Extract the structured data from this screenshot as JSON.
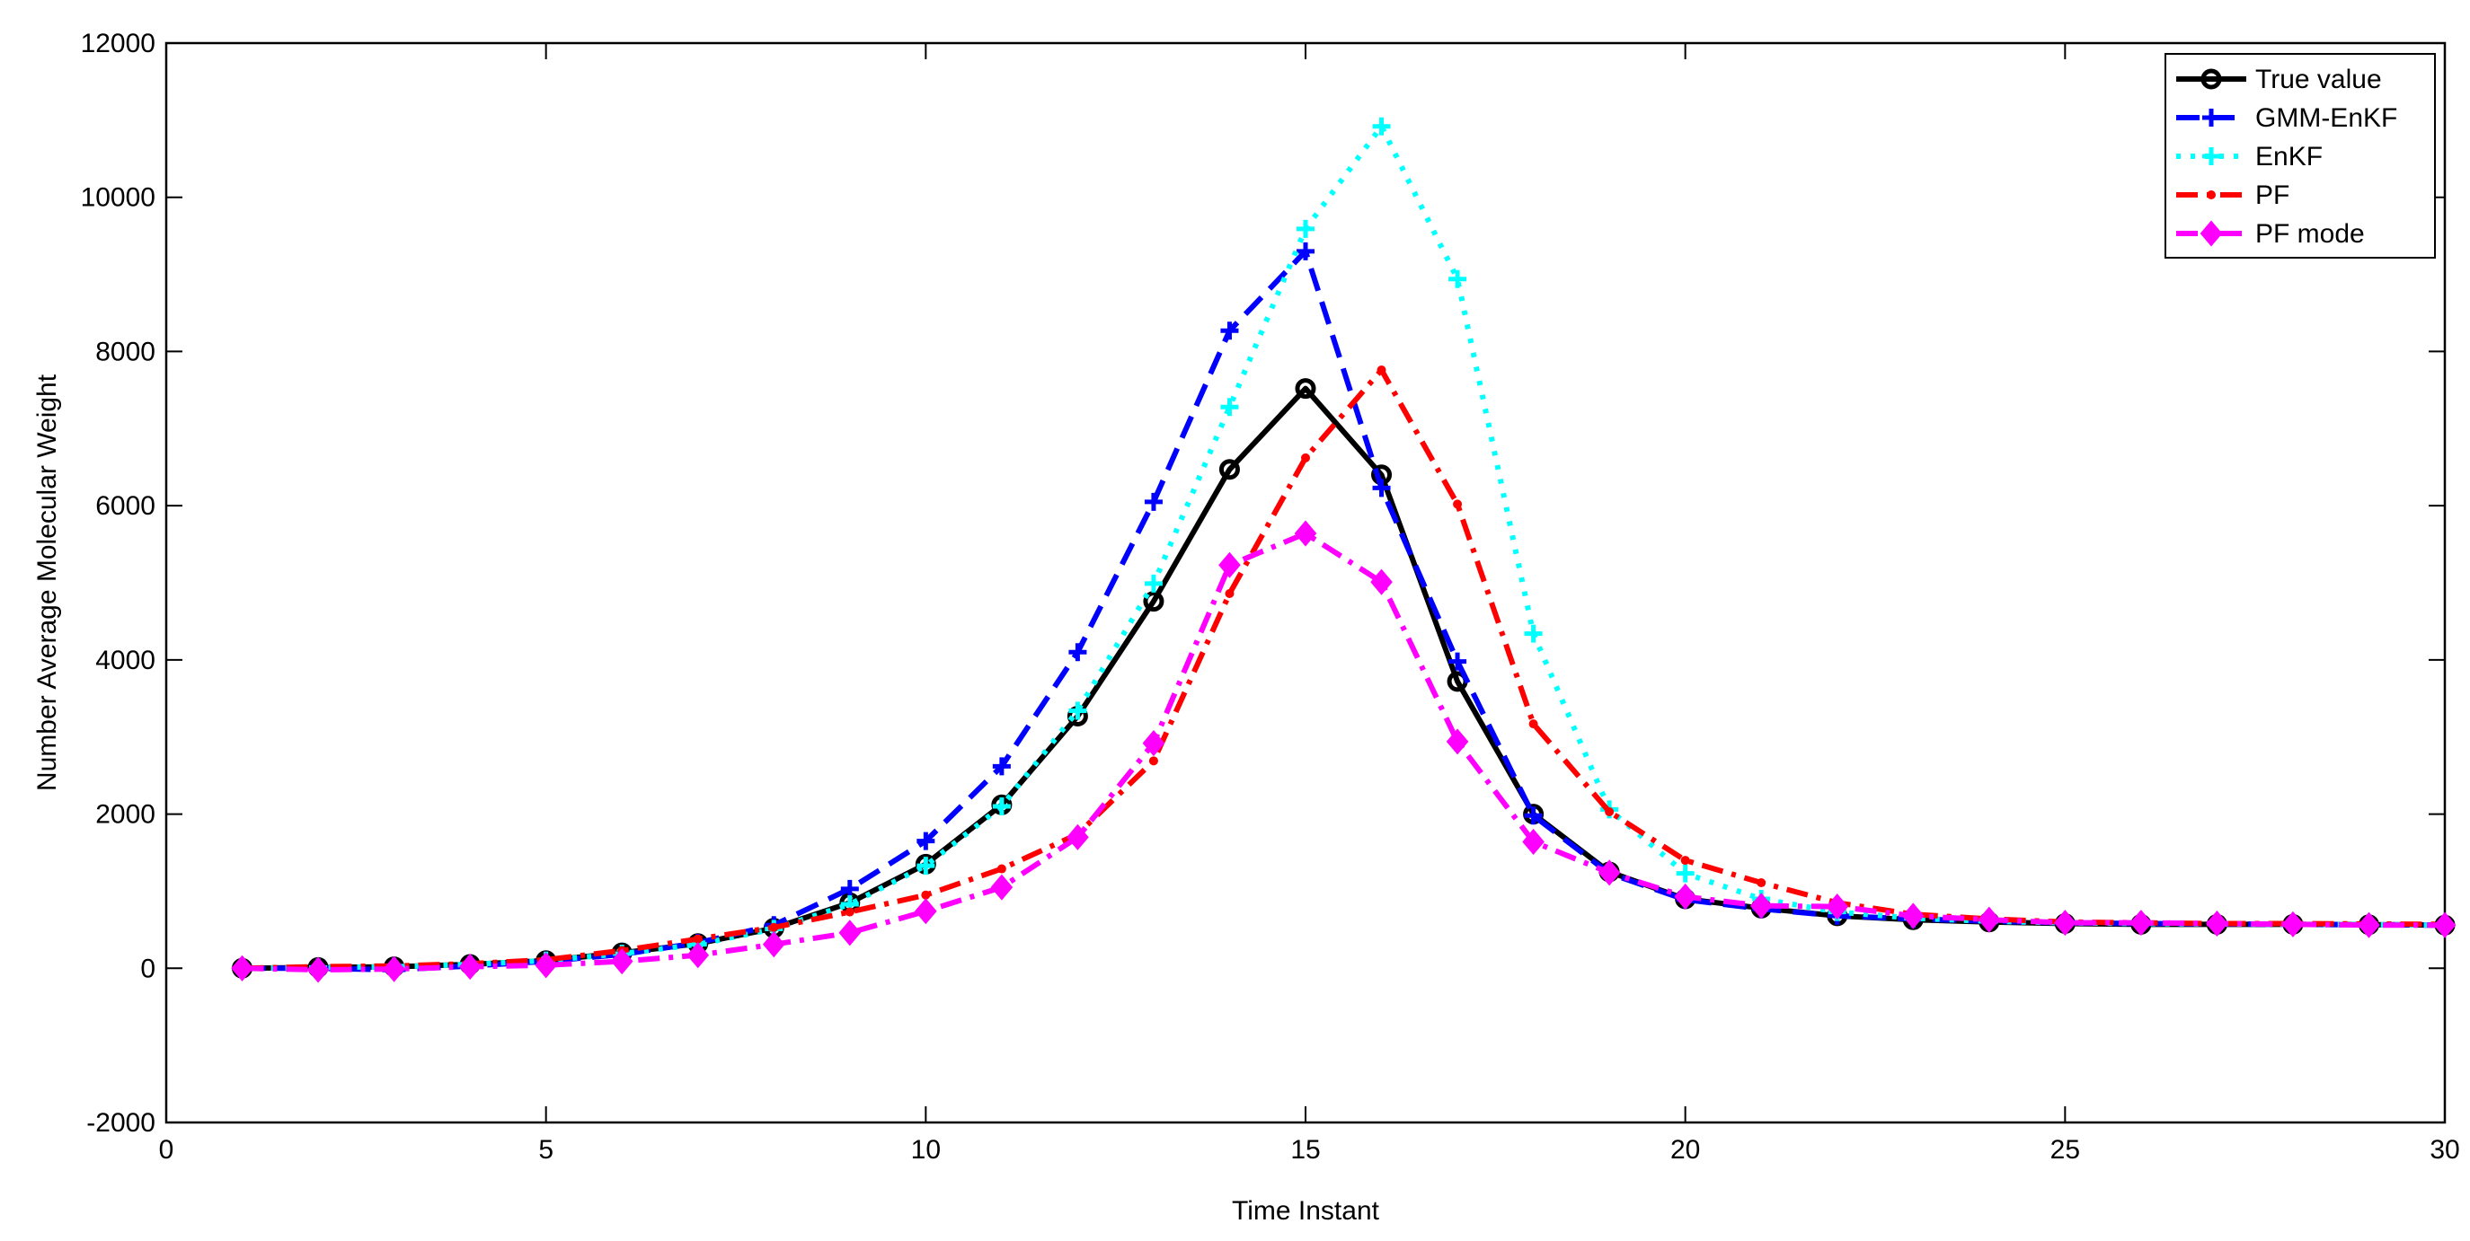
{
  "chart_data": {
    "type": "line",
    "title": "",
    "xlabel": "Time Instant",
    "ylabel": "Number Average Molecular Weight",
    "xlim": [
      0,
      30
    ],
    "ylim": [
      -2000,
      12000
    ],
    "xticks": [
      0,
      5,
      10,
      15,
      20,
      25,
      30
    ],
    "yticks": [
      -2000,
      0,
      2000,
      4000,
      6000,
      8000,
      10000,
      12000
    ],
    "grid": false,
    "legend_position": "top-right",
    "x": [
      1,
      2,
      3,
      4,
      5,
      6,
      7,
      8,
      9,
      10,
      11,
      12,
      13,
      14,
      15,
      16,
      17,
      18,
      19,
      20,
      21,
      22,
      23,
      24,
      25,
      26,
      27,
      28,
      29,
      30
    ],
    "series": [
      {
        "name": "True value",
        "color": "#000000",
        "dash": "solid",
        "marker": "circle",
        "values": [
          0,
          10,
          20,
          50,
          100,
          200,
          320,
          520,
          850,
          1350,
          2120,
          3270,
          4760,
          6470,
          7520,
          6400,
          3720,
          2000,
          1250,
          900,
          780,
          680,
          630,
          600,
          580,
          570,
          570,
          570,
          565,
          560
        ]
      },
      {
        "name": "GMM-EnKF",
        "color": "#0000ff",
        "dash": "dashed",
        "marker": "plus",
        "values": [
          0,
          0,
          -20,
          30,
          90,
          180,
          330,
          560,
          1030,
          1650,
          2620,
          4100,
          6050,
          8270,
          9300,
          6230,
          3980,
          1980,
          1230,
          890,
          770,
          680,
          640,
          610,
          590,
          580,
          575,
          570,
          565,
          560
        ]
      },
      {
        "name": "EnKF",
        "color": "#00ffff",
        "dash": "dotted",
        "marker": "plus",
        "values": [
          0,
          10,
          20,
          50,
          100,
          190,
          310,
          510,
          830,
          1330,
          2100,
          3340,
          4990,
          7280,
          9590,
          10920,
          8940,
          4340,
          2060,
          1230,
          900,
          730,
          650,
          610,
          590,
          580,
          575,
          570,
          565,
          560
        ]
      },
      {
        "name": "PF",
        "color": "#ff0000",
        "dash": "dashdot",
        "marker": "dot",
        "values": [
          0,
          20,
          30,
          60,
          110,
          230,
          380,
          530,
          730,
          950,
          1290,
          1740,
          2690,
          4860,
          6620,
          7760,
          6020,
          3170,
          2030,
          1400,
          1110,
          850,
          700,
          640,
          600,
          590,
          580,
          580,
          575,
          570
        ]
      },
      {
        "name": "PF mode",
        "color": "#ff00ff",
        "dash": "dashdot",
        "marker": "diamond",
        "values": [
          0,
          -20,
          -10,
          20,
          40,
          90,
          170,
          310,
          460,
          740,
          1050,
          1700,
          2920,
          5230,
          5640,
          5010,
          2940,
          1640,
          1240,
          930,
          810,
          800,
          680,
          630,
          590,
          590,
          580,
          570,
          560,
          560
        ]
      }
    ]
  }
}
